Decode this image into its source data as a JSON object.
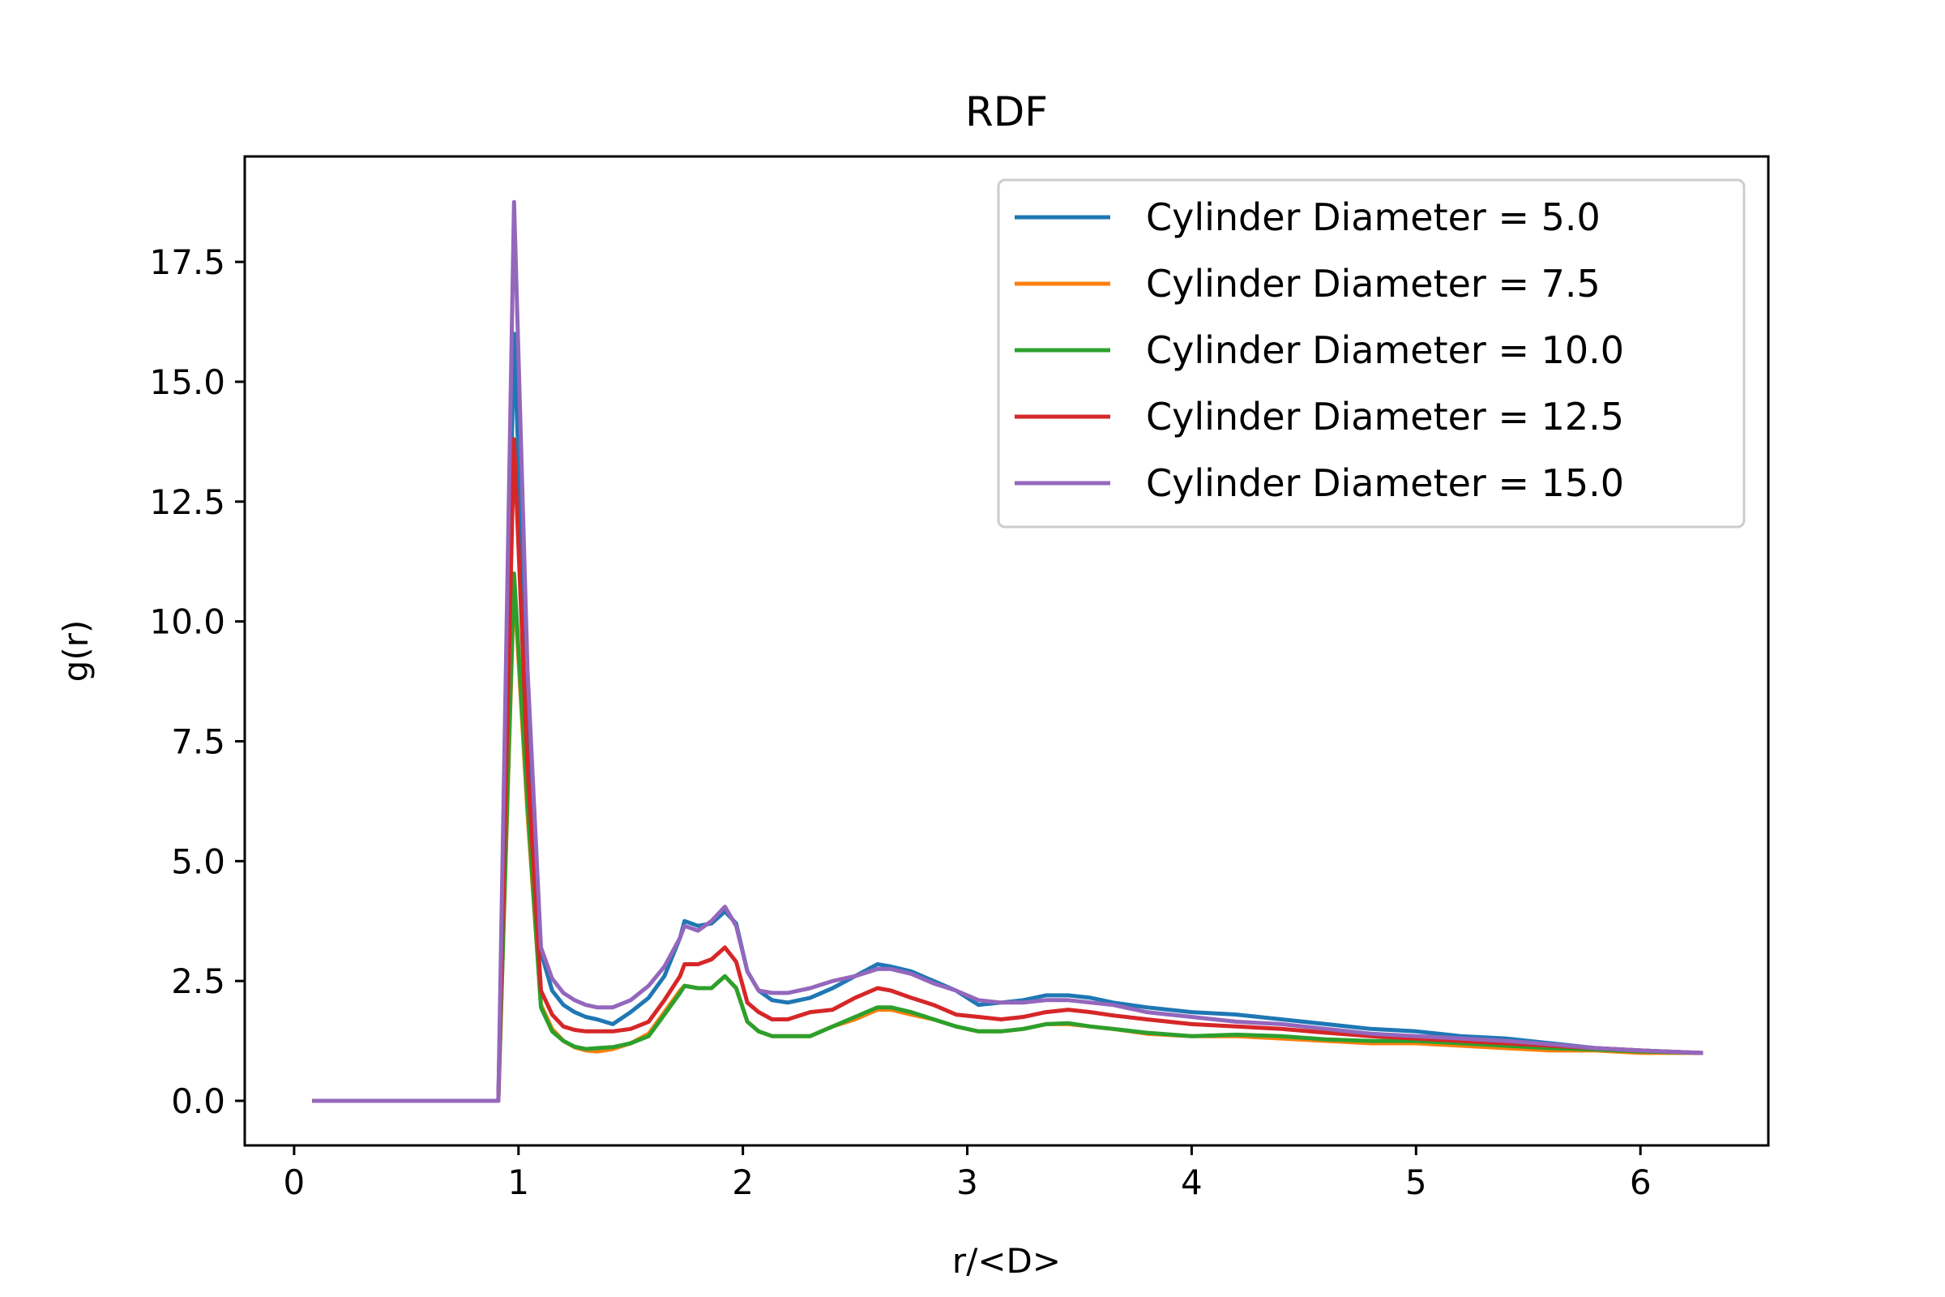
{
  "chart_data": {
    "type": "line",
    "title": "RDF",
    "xlabel": "r/<D>",
    "ylabel": "g(r)",
    "xlim": [
      -0.22,
      6.57
    ],
    "ylim": [
      -0.93,
      19.7
    ],
    "xticks": [
      0,
      1,
      2,
      3,
      4,
      5,
      6
    ],
    "xtick_labels": [
      "0",
      "1",
      "2",
      "3",
      "4",
      "5",
      "6"
    ],
    "yticks": [
      0.0,
      2.5,
      5.0,
      7.5,
      10.0,
      12.5,
      15.0,
      17.5
    ],
    "ytick_labels": [
      "0.0",
      "2.5",
      "5.0",
      "7.5",
      "10.0",
      "12.5",
      "15.0",
      "17.5"
    ],
    "grid": false,
    "legend_position": "top-right",
    "series": [
      {
        "name": "Cylinder Diameter = 5.0",
        "color": "#1f77b4",
        "points": [
          [
            0.09,
            0
          ],
          [
            0.2,
            0
          ],
          [
            0.4,
            0
          ],
          [
            0.6,
            0
          ],
          [
            0.8,
            0
          ],
          [
            0.91,
            0
          ],
          [
            0.98,
            16.0
          ],
          [
            1.04,
            8.0
          ],
          [
            1.1,
            3.1
          ],
          [
            1.15,
            2.3
          ],
          [
            1.2,
            2.0
          ],
          [
            1.25,
            1.85
          ],
          [
            1.3,
            1.75
          ],
          [
            1.35,
            1.7
          ],
          [
            1.42,
            1.6
          ],
          [
            1.5,
            1.85
          ],
          [
            1.58,
            2.15
          ],
          [
            1.65,
            2.6
          ],
          [
            1.72,
            3.4
          ],
          [
            1.74,
            3.75
          ],
          [
            1.8,
            3.65
          ],
          [
            1.86,
            3.7
          ],
          [
            1.92,
            3.95
          ],
          [
            1.97,
            3.7
          ],
          [
            2.02,
            2.7
          ],
          [
            2.07,
            2.3
          ],
          [
            2.13,
            2.1
          ],
          [
            2.2,
            2.05
          ],
          [
            2.3,
            2.15
          ],
          [
            2.4,
            2.35
          ],
          [
            2.5,
            2.6
          ],
          [
            2.6,
            2.85
          ],
          [
            2.66,
            2.8
          ],
          [
            2.75,
            2.7
          ],
          [
            2.85,
            2.5
          ],
          [
            2.95,
            2.3
          ],
          [
            3.05,
            2.0
          ],
          [
            3.15,
            2.05
          ],
          [
            3.25,
            2.1
          ],
          [
            3.35,
            2.2
          ],
          [
            3.45,
            2.2
          ],
          [
            3.55,
            2.15
          ],
          [
            3.65,
            2.05
          ],
          [
            3.8,
            1.95
          ],
          [
            4.0,
            1.85
          ],
          [
            4.2,
            1.8
          ],
          [
            4.4,
            1.7
          ],
          [
            4.6,
            1.6
          ],
          [
            4.8,
            1.5
          ],
          [
            5.0,
            1.45
          ],
          [
            5.2,
            1.35
          ],
          [
            5.4,
            1.3
          ],
          [
            5.6,
            1.2
          ],
          [
            5.8,
            1.1
          ],
          [
            6.0,
            1.05
          ],
          [
            6.27,
            1.0
          ]
        ]
      },
      {
        "name": "Cylinder Diameter = 7.5",
        "color": "#ff7f0e",
        "points": [
          [
            0.09,
            0
          ],
          [
            0.2,
            0
          ],
          [
            0.4,
            0
          ],
          [
            0.6,
            0
          ],
          [
            0.8,
            0
          ],
          [
            0.91,
            0
          ],
          [
            0.98,
            10.8
          ],
          [
            1.04,
            6.0
          ],
          [
            1.1,
            2.0
          ],
          [
            1.15,
            1.5
          ],
          [
            1.2,
            1.25
          ],
          [
            1.25,
            1.12
          ],
          [
            1.3,
            1.05
          ],
          [
            1.35,
            1.03
          ],
          [
            1.42,
            1.08
          ],
          [
            1.5,
            1.2
          ],
          [
            1.58,
            1.4
          ],
          [
            1.65,
            1.85
          ],
          [
            1.72,
            2.3
          ],
          [
            1.74,
            2.4
          ],
          [
            1.8,
            2.35
          ],
          [
            1.86,
            2.35
          ],
          [
            1.92,
            2.6
          ],
          [
            1.97,
            2.35
          ],
          [
            2.02,
            1.65
          ],
          [
            2.07,
            1.45
          ],
          [
            2.13,
            1.35
          ],
          [
            2.2,
            1.35
          ],
          [
            2.3,
            1.35
          ],
          [
            2.4,
            1.55
          ],
          [
            2.5,
            1.7
          ],
          [
            2.6,
            1.9
          ],
          [
            2.66,
            1.9
          ],
          [
            2.75,
            1.8
          ],
          [
            2.85,
            1.7
          ],
          [
            2.95,
            1.55
          ],
          [
            3.05,
            1.45
          ],
          [
            3.15,
            1.45
          ],
          [
            3.25,
            1.5
          ],
          [
            3.35,
            1.6
          ],
          [
            3.45,
            1.6
          ],
          [
            3.55,
            1.55
          ],
          [
            3.65,
            1.5
          ],
          [
            3.8,
            1.4
          ],
          [
            4.0,
            1.35
          ],
          [
            4.2,
            1.35
          ],
          [
            4.4,
            1.3
          ],
          [
            4.6,
            1.25
          ],
          [
            4.8,
            1.2
          ],
          [
            5.0,
            1.2
          ],
          [
            5.2,
            1.15
          ],
          [
            5.4,
            1.1
          ],
          [
            5.6,
            1.05
          ],
          [
            5.8,
            1.05
          ],
          [
            6.0,
            1.0
          ],
          [
            6.27,
            1.0
          ]
        ]
      },
      {
        "name": "Cylinder Diameter = 10.0",
        "color": "#2ca02c",
        "points": [
          [
            0.09,
            0
          ],
          [
            0.2,
            0
          ],
          [
            0.4,
            0
          ],
          [
            0.6,
            0
          ],
          [
            0.8,
            0
          ],
          [
            0.91,
            0
          ],
          [
            0.98,
            11.0
          ],
          [
            1.04,
            6.2
          ],
          [
            1.1,
            1.95
          ],
          [
            1.15,
            1.45
          ],
          [
            1.2,
            1.25
          ],
          [
            1.25,
            1.13
          ],
          [
            1.3,
            1.08
          ],
          [
            1.35,
            1.1
          ],
          [
            1.42,
            1.12
          ],
          [
            1.5,
            1.2
          ],
          [
            1.58,
            1.35
          ],
          [
            1.65,
            1.8
          ],
          [
            1.72,
            2.25
          ],
          [
            1.74,
            2.4
          ],
          [
            1.8,
            2.35
          ],
          [
            1.86,
            2.35
          ],
          [
            1.92,
            2.6
          ],
          [
            1.97,
            2.35
          ],
          [
            2.02,
            1.65
          ],
          [
            2.07,
            1.45
          ],
          [
            2.13,
            1.35
          ],
          [
            2.2,
            1.35
          ],
          [
            2.3,
            1.35
          ],
          [
            2.4,
            1.55
          ],
          [
            2.5,
            1.75
          ],
          [
            2.6,
            1.95
          ],
          [
            2.66,
            1.95
          ],
          [
            2.75,
            1.85
          ],
          [
            2.85,
            1.7
          ],
          [
            2.95,
            1.55
          ],
          [
            3.05,
            1.45
          ],
          [
            3.15,
            1.45
          ],
          [
            3.25,
            1.5
          ],
          [
            3.35,
            1.6
          ],
          [
            3.45,
            1.62
          ],
          [
            3.55,
            1.55
          ],
          [
            3.65,
            1.5
          ],
          [
            3.8,
            1.42
          ],
          [
            4.0,
            1.35
          ],
          [
            4.2,
            1.38
          ],
          [
            4.4,
            1.35
          ],
          [
            4.6,
            1.28
          ],
          [
            4.8,
            1.25
          ],
          [
            5.0,
            1.25
          ],
          [
            5.2,
            1.2
          ],
          [
            5.4,
            1.15
          ],
          [
            5.6,
            1.1
          ],
          [
            5.8,
            1.07
          ],
          [
            6.0,
            1.03
          ],
          [
            6.27,
            1.0
          ]
        ]
      },
      {
        "name": "Cylinder Diameter = 12.5",
        "color": "#d62728",
        "points": [
          [
            0.09,
            0
          ],
          [
            0.2,
            0
          ],
          [
            0.4,
            0
          ],
          [
            0.6,
            0
          ],
          [
            0.8,
            0
          ],
          [
            0.91,
            0
          ],
          [
            0.98,
            13.8
          ],
          [
            1.04,
            7.0
          ],
          [
            1.1,
            2.3
          ],
          [
            1.15,
            1.8
          ],
          [
            1.2,
            1.55
          ],
          [
            1.25,
            1.48
          ],
          [
            1.3,
            1.45
          ],
          [
            1.35,
            1.45
          ],
          [
            1.42,
            1.45
          ],
          [
            1.5,
            1.5
          ],
          [
            1.58,
            1.65
          ],
          [
            1.65,
            2.1
          ],
          [
            1.72,
            2.6
          ],
          [
            1.74,
            2.85
          ],
          [
            1.8,
            2.85
          ],
          [
            1.86,
            2.95
          ],
          [
            1.92,
            3.2
          ],
          [
            1.97,
            2.9
          ],
          [
            2.02,
            2.05
          ],
          [
            2.07,
            1.85
          ],
          [
            2.13,
            1.7
          ],
          [
            2.2,
            1.7
          ],
          [
            2.3,
            1.85
          ],
          [
            2.4,
            1.9
          ],
          [
            2.5,
            2.15
          ],
          [
            2.6,
            2.35
          ],
          [
            2.66,
            2.3
          ],
          [
            2.75,
            2.15
          ],
          [
            2.85,
            2.0
          ],
          [
            2.95,
            1.8
          ],
          [
            3.05,
            1.75
          ],
          [
            3.15,
            1.7
          ],
          [
            3.25,
            1.75
          ],
          [
            3.35,
            1.85
          ],
          [
            3.45,
            1.9
          ],
          [
            3.55,
            1.85
          ],
          [
            3.65,
            1.78
          ],
          [
            3.8,
            1.7
          ],
          [
            4.0,
            1.6
          ],
          [
            4.2,
            1.55
          ],
          [
            4.4,
            1.5
          ],
          [
            4.6,
            1.42
          ],
          [
            4.8,
            1.35
          ],
          [
            5.0,
            1.3
          ],
          [
            5.2,
            1.25
          ],
          [
            5.4,
            1.2
          ],
          [
            5.6,
            1.15
          ],
          [
            5.8,
            1.1
          ],
          [
            6.0,
            1.05
          ],
          [
            6.27,
            1.0
          ]
        ]
      },
      {
        "name": "Cylinder Diameter = 15.0",
        "color": "#9467bd",
        "points": [
          [
            0.09,
            0
          ],
          [
            0.2,
            0
          ],
          [
            0.4,
            0
          ],
          [
            0.6,
            0
          ],
          [
            0.8,
            0
          ],
          [
            0.91,
            0
          ],
          [
            0.98,
            18.75
          ],
          [
            1.04,
            9.0
          ],
          [
            1.1,
            3.2
          ],
          [
            1.15,
            2.55
          ],
          [
            1.2,
            2.25
          ],
          [
            1.25,
            2.1
          ],
          [
            1.3,
            2.0
          ],
          [
            1.35,
            1.95
          ],
          [
            1.42,
            1.95
          ],
          [
            1.5,
            2.1
          ],
          [
            1.58,
            2.4
          ],
          [
            1.65,
            2.8
          ],
          [
            1.72,
            3.4
          ],
          [
            1.74,
            3.65
          ],
          [
            1.8,
            3.55
          ],
          [
            1.86,
            3.75
          ],
          [
            1.92,
            4.05
          ],
          [
            1.97,
            3.65
          ],
          [
            2.02,
            2.7
          ],
          [
            2.07,
            2.3
          ],
          [
            2.13,
            2.25
          ],
          [
            2.2,
            2.25
          ],
          [
            2.3,
            2.35
          ],
          [
            2.4,
            2.5
          ],
          [
            2.5,
            2.6
          ],
          [
            2.6,
            2.75
          ],
          [
            2.66,
            2.75
          ],
          [
            2.75,
            2.65
          ],
          [
            2.85,
            2.45
          ],
          [
            2.95,
            2.3
          ],
          [
            3.05,
            2.1
          ],
          [
            3.15,
            2.05
          ],
          [
            3.25,
            2.05
          ],
          [
            3.35,
            2.1
          ],
          [
            3.45,
            2.1
          ],
          [
            3.55,
            2.05
          ],
          [
            3.65,
            2.0
          ],
          [
            3.8,
            1.85
          ],
          [
            4.0,
            1.75
          ],
          [
            4.2,
            1.65
          ],
          [
            4.4,
            1.6
          ],
          [
            4.6,
            1.5
          ],
          [
            4.8,
            1.4
          ],
          [
            5.0,
            1.35
          ],
          [
            5.2,
            1.3
          ],
          [
            5.4,
            1.25
          ],
          [
            5.6,
            1.18
          ],
          [
            5.8,
            1.1
          ],
          [
            6.0,
            1.05
          ],
          [
            6.27,
            1.0
          ]
        ]
      }
    ]
  }
}
